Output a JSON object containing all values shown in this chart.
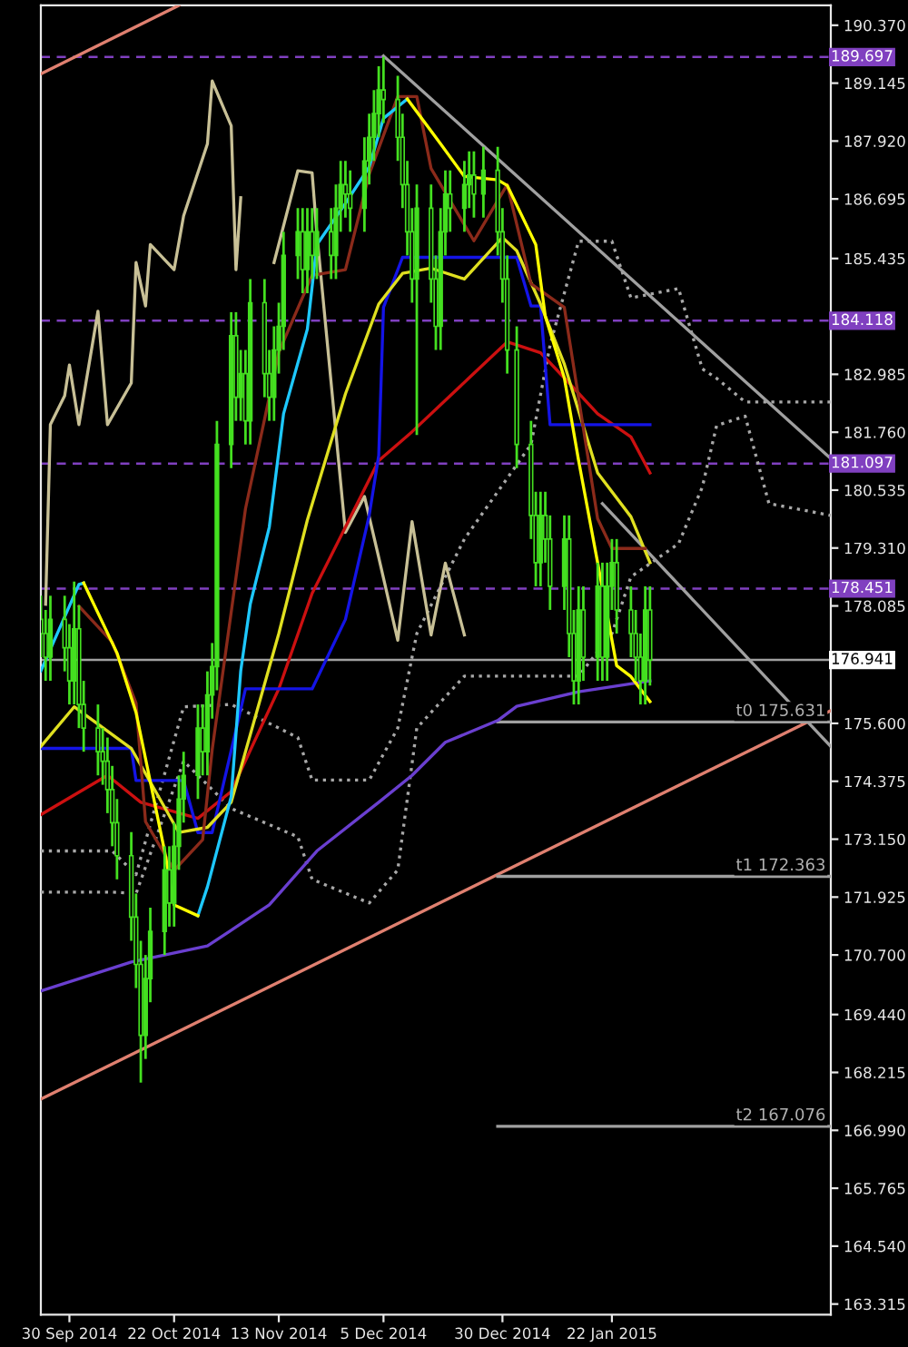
{
  "chart_data": {
    "type": "candlestick",
    "xlim": [
      "2014-09-24",
      "2015-03-09"
    ],
    "xticks": [
      {
        "value": "2014-09-30",
        "label": "30 Sep 2014"
      },
      {
        "value": "2014-10-22",
        "label": "22 Oct 2014"
      },
      {
        "value": "2014-11-13",
        "label": "13 Nov 2014"
      },
      {
        "value": "2014-12-05",
        "label": "5 Dec 2014"
      },
      {
        "value": "2014-12-30",
        "label": "30 Dec 2014"
      },
      {
        "value": "2015-01-22",
        "label": "22 Jan 2015"
      }
    ],
    "ylim": [
      163.09,
      190.79
    ],
    "yticks": [
      {
        "value": 190.37,
        "label": "190.370"
      },
      189.145,
      {
        "value": 187.92,
        "label": "187.920"
      },
      186.695,
      185.435,
      182.985,
      {
        "value": 181.76,
        "label": "181.760"
      },
      180.535,
      {
        "value": 179.31,
        "label": "179.310"
      },
      178.085,
      {
        "value": 175.6,
        "label": "175.600"
      },
      174.375,
      {
        "value": 173.15,
        "label": "173.150"
      },
      171.925,
      {
        "value": 170.7,
        "label": "170.700"
      },
      {
        "value": 169.44,
        "label": "169.440"
      },
      168.215,
      {
        "value": 166.99,
        "label": "166.990"
      },
      165.765,
      {
        "value": 164.54,
        "label": "164.540"
      },
      163.315
    ],
    "grid": false,
    "ref_lines": [
      {
        "axis": "y",
        "value": 189.697,
        "label": "189.697",
        "color": "#8040c0",
        "line_style": "dashed"
      },
      {
        "axis": "y",
        "value": 184.118,
        "label": "184.118",
        "color": "#8040c0",
        "line_style": "dashed"
      },
      {
        "axis": "y",
        "value": 181.097,
        "label": "181.097",
        "color": "#8040c0",
        "line_style": "dashed"
      },
      {
        "axis": "y",
        "value": 178.451,
        "label": "178.451",
        "color": "#8040c0",
        "line_style": "dashed"
      },
      {
        "axis": "y",
        "value": 176.941,
        "label": "176.941",
        "color": "#a0a0a0",
        "line_style": "solid"
      }
    ],
    "annotations": [
      {
        "text": "t0 175.631",
        "x": "2015-03-09",
        "y": 175.631
      },
      {
        "text": "t1 172.363",
        "x": "2015-03-09",
        "y": 172.363
      },
      {
        "text": "t2 167.076",
        "x": "2015-03-09",
        "y": 167.076
      }
    ],
    "series": [
      {
        "type": "line",
        "line_style": "dotted",
        "color": "#a8a8a8",
        "x": [
          "2014-09-24",
          "2014-10-09",
          "2014-10-14",
          "2014-10-24",
          "2014-11-03",
          "2014-11-17",
          "2014-11-20",
          "2014-12-02",
          "2014-12-08",
          "2014-12-12",
          "2014-12-22",
          "2015-01-05",
          "2015-01-09",
          "2015-01-15",
          "2015-01-22",
          "2015-01-26",
          "2015-02-05",
          "2015-02-10",
          "2015-02-13",
          "2015-02-19",
          "2015-02-24",
          "2015-03-09"
        ],
        "values": [
          172.9,
          172.9,
          172.4,
          175.95,
          176.0,
          175.3,
          174.4,
          174.4,
          175.5,
          177.5,
          179.5,
          181.5,
          183.6,
          185.8,
          185.8,
          184.6,
          184.8,
          183.1,
          182.9,
          182.4,
          182.4,
          182.4
        ]
      },
      {
        "type": "line",
        "line_style": "dotted",
        "color": "#a8a8a8",
        "x": [
          "2014-09-24",
          "2014-10-09",
          "2014-10-14",
          "2014-10-24",
          "2014-11-03",
          "2014-11-17",
          "2014-11-20",
          "2014-12-02",
          "2014-12-08",
          "2014-12-12",
          "2014-12-22",
          "2015-01-05",
          "2015-01-09",
          "2015-01-15",
          "2015-01-22",
          "2015-01-26",
          "2015-02-05",
          "2015-02-10",
          "2015-02-13",
          "2015-02-19",
          "2015-02-24",
          "2015-03-09"
        ],
        "values": [
          172.03,
          172.03,
          172.0,
          174.8,
          173.8,
          173.2,
          172.3,
          171.8,
          172.5,
          175.5,
          176.6,
          176.6,
          176.6,
          176.6,
          177.5,
          178.7,
          179.4,
          180.6,
          181.9,
          182.1,
          180.25,
          180.0
        ]
      },
      {
        "type": "line",
        "color": "#e08070",
        "x": [
          "2014-09-24",
          "2015-03-09"
        ],
        "values": [
          167.65,
          175.87
        ]
      },
      {
        "type": "line",
        "color": "#e08070",
        "x": [
          "2014-09-24",
          "2014-10-23"
        ],
        "values": [
          189.34,
          190.79
        ]
      },
      {
        "type": "line",
        "color": "#a0a0a0",
        "x": [
          "2014-12-05",
          "2015-03-09"
        ],
        "values": [
          189.72,
          181.2
        ]
      },
      {
        "type": "line",
        "color": "#a0a0a0",
        "x": [
          "2015-01-20",
          "2015-03-09"
        ],
        "values": [
          180.25,
          175.11
        ]
      },
      {
        "type": "line",
        "color": "#a0a0a0",
        "x": [
          "2014-12-29",
          "2015-03-09"
        ],
        "values": [
          175.631,
          175.631
        ]
      },
      {
        "type": "line",
        "color": "#a0a0a0",
        "x": [
          "2014-12-29",
          "2015-03-09"
        ],
        "values": [
          172.363,
          172.363
        ]
      },
      {
        "type": "line",
        "color": "#a0a0a0",
        "x": [
          "2014-12-29",
          "2015-03-09"
        ],
        "values": [
          167.076,
          167.076
        ]
      },
      {
        "type": "line",
        "color": "#c8c096",
        "x": [
          "2014-09-25",
          "2014-09-26",
          "2014-09-29",
          "2014-09-30",
          "2014-10-02",
          "2014-10-06",
          "2014-10-08",
          "2014-10-13",
          "2014-10-14",
          "2014-10-16",
          "2014-10-17",
          "2014-10-22",
          "2014-10-24",
          "2014-10-29",
          "2014-10-30",
          "2014-11-03",
          "2014-11-04",
          "2014-11-05",
          "2014-11-10",
          "2014-11-12",
          "2014-11-17",
          "2014-11-20",
          "2014-11-21",
          "2014-11-27",
          "2014-12-01",
          "2014-12-04",
          "2014-12-08",
          "2014-12-11",
          "2014-12-15",
          "2014-12-18",
          "2014-12-22"
        ],
        "values": [
          178.12,
          181.92,
          182.53,
          183.18,
          181.92,
          184.32,
          181.92,
          182.8,
          185.35,
          184.43,
          185.73,
          185.2,
          186.34,
          187.86,
          189.19,
          188.24,
          185.2,
          186.72,
          null,
          185.35,
          187.29,
          187.25,
          185.96,
          179.64,
          180.4,
          179.11,
          177.36,
          179.87,
          177.47,
          178.99,
          177.47
        ]
      },
      {
        "type": "line",
        "color": "#6a3fd0",
        "x": [
          "2014-09-24",
          "2014-10-13",
          "2014-10-29",
          "2014-11-11",
          "2014-11-21",
          "2014-12-04",
          "2014-12-11",
          "2014-12-18",
          "2014-12-29",
          "2015-01-02",
          "2015-01-15",
          "2015-01-30"
        ],
        "values": [
          169.94,
          170.55,
          170.89,
          171.76,
          172.9,
          173.93,
          174.5,
          175.2,
          175.66,
          175.96,
          176.27,
          176.5
        ]
      },
      {
        "type": "line",
        "color": "#cc1010",
        "x": [
          "2014-09-24",
          "2014-10-08",
          "2014-10-15",
          "2014-10-27",
          "2014-11-03",
          "2014-11-13",
          "2014-11-20",
          "2014-11-27",
          "2014-12-04",
          "2014-12-11",
          "2014-12-23",
          "2014-12-31",
          "2015-01-07",
          "2015-01-13",
          "2015-01-19",
          "2015-01-26",
          "2015-01-30"
        ],
        "values": [
          173.67,
          174.5,
          173.93,
          173.59,
          174.16,
          176.33,
          178.35,
          179.75,
          181.16,
          181.77,
          182.91,
          183.67,
          183.44,
          182.8,
          182.15,
          181.66,
          180.9
        ]
      },
      {
        "type": "line",
        "color": "#1414e6",
        "x": [
          "2014-09-24",
          "2014-10-13",
          "2014-10-14",
          "2014-10-24",
          "2014-10-27",
          "2014-10-30",
          "2014-11-06",
          "2014-11-20",
          "2014-11-27",
          "2014-12-02",
          "2014-12-04",
          "2014-12-05",
          "2014-12-09",
          "2015-01-02",
          "2015-01-05",
          "2015-01-07",
          "2015-01-09",
          "2015-01-30"
        ],
        "values": [
          175.07,
          175.07,
          174.39,
          174.39,
          173.29,
          173.29,
          176.33,
          176.33,
          177.8,
          180.0,
          181.27,
          184.4,
          185.46,
          185.46,
          184.43,
          184.43,
          181.92,
          181.92
        ]
      },
      {
        "type": "line",
        "color": "#e0e020",
        "x": [
          "2014-09-24",
          "2014-10-01",
          "2014-10-13",
          "2014-10-23",
          "2014-10-29",
          "2014-11-03",
          "2014-11-13",
          "2014-11-19",
          "2014-11-27",
          "2014-12-04",
          "2014-12-09",
          "2014-12-15",
          "2014-12-22",
          "2014-12-30",
          "2015-01-02",
          "2015-01-07",
          "2015-01-12",
          "2015-01-19",
          "2015-01-26",
          "2015-01-30"
        ],
        "values": [
          175.11,
          175.95,
          175.07,
          173.29,
          173.4,
          173.93,
          177.5,
          179.9,
          182.57,
          184.47,
          185.12,
          185.23,
          185.0,
          185.88,
          185.6,
          184.47,
          183.2,
          180.9,
          179.97,
          179.0
        ]
      },
      {
        "type": "line",
        "color": "#8b2a1a",
        "x": [
          "2014-10-02",
          "2014-10-09",
          "2014-10-14",
          "2014-10-16",
          "2014-10-22",
          "2014-10-28",
          "2014-10-30",
          "2014-11-06",
          "2014-11-13",
          "2014-11-20",
          "2014-11-27",
          "2014-12-02",
          "2014-12-08",
          "2014-12-12",
          "2014-12-15",
          "2014-12-24",
          "2014-12-31",
          "2015-01-05",
          "2015-01-12",
          "2015-01-19",
          "2015-01-22",
          "2015-01-29"
        ],
        "values": [
          178.08,
          177.32,
          176.03,
          173.52,
          172.49,
          173.14,
          175.04,
          180.14,
          183.45,
          185.08,
          185.2,
          187.22,
          188.86,
          188.86,
          187.34,
          185.81,
          187.0,
          184.9,
          184.4,
          179.93,
          179.3,
          179.3
        ]
      },
      {
        "type": "line",
        "color": "#1ec8ff",
        "x": [
          "2014-09-24",
          "2014-10-02",
          "2014-10-03",
          null,
          "2014-10-27",
          "2014-10-29",
          "2014-11-03",
          "2014-11-05",
          "2014-11-07",
          "2014-11-11",
          "2014-11-14",
          "2014-11-19",
          "2014-11-21",
          "2014-11-27",
          "2014-12-02",
          "2014-12-05",
          "2014-12-10"
        ],
        "values": [
          176.71,
          178.54,
          178.57,
          null,
          171.53,
          172.14,
          174.05,
          176.71,
          178.12,
          179.75,
          182.15,
          183.94,
          185.73,
          186.6,
          187.37,
          188.4,
          188.81
        ]
      },
      {
        "type": "line",
        "color": "#ffff00",
        "x": [
          "2014-10-03",
          "2014-10-10",
          "2014-10-14",
          "2014-10-20",
          "2014-10-22",
          "2014-10-27",
          null,
          "2014-12-10",
          "2014-12-17",
          "2014-12-22",
          "2014-12-29",
          "2014-12-31",
          "2015-01-06",
          "2015-01-08",
          "2015-01-12",
          "2015-01-15",
          "2015-01-19",
          "2015-01-23",
          "2015-01-26",
          "2015-01-30"
        ],
        "values": [
          178.57,
          177.09,
          175.83,
          172.9,
          171.76,
          171.53,
          null,
          188.81,
          187.86,
          187.17,
          187.1,
          186.98,
          185.73,
          184.21,
          182.91,
          181.16,
          179.0,
          176.82,
          176.59,
          176.06
        ]
      },
      {
        "color": "#44e020",
        "x": [
          "2014-09-24",
          "2014-09-25",
          "2014-09-26",
          "2014-09-29",
          "2014-09-30",
          "2014-10-01",
          "2014-10-02",
          "2014-10-03",
          "2014-10-06",
          "2014-10-07",
          "2014-10-08",
          "2014-10-09",
          "2014-10-10",
          "2014-10-13",
          "2014-10-14",
          "2014-10-15",
          "2014-10-16",
          "2014-10-17",
          "2014-10-20",
          "2014-10-21",
          "2014-10-22",
          "2014-10-23",
          "2014-10-24",
          "2014-10-27",
          "2014-10-28",
          "2014-10-29",
          "2014-10-30",
          "2014-10-31",
          "2014-11-03",
          "2014-11-04",
          "2014-11-05",
          "2014-11-06",
          "2014-11-07",
          "2014-11-10",
          "2014-11-11",
          "2014-11-12",
          "2014-11-13",
          "2014-11-14",
          "2014-11-17",
          "2014-11-18",
          "2014-11-19",
          "2014-11-20",
          "2014-11-21",
          "2014-11-24",
          "2014-11-25",
          "2014-11-26",
          "2014-11-27",
          "2014-11-28",
          "2014-12-01",
          "2014-12-02",
          "2014-12-03",
          "2014-12-04",
          "2014-12-05",
          "2014-12-08",
          "2014-12-09",
          "2014-12-10",
          "2014-12-11",
          "2014-12-12",
          "2014-12-15",
          "2014-12-16",
          "2014-12-17",
          "2014-12-18",
          "2014-12-19",
          "2014-12-22",
          "2014-12-23",
          "2014-12-24",
          "2014-12-26",
          "2014-12-29",
          "2014-12-30",
          "2014-12-31",
          "2015-01-02",
          "2015-01-05",
          "2015-01-06",
          "2015-01-07",
          "2015-01-08",
          "2015-01-09",
          "2015-01-12",
          "2015-01-13",
          "2015-01-14",
          "2015-01-15",
          "2015-01-16",
          "2015-01-19",
          "2015-01-20",
          "2015-01-21",
          "2015-01-22",
          "2015-01-23",
          "2015-01-26",
          "2015-01-27",
          "2015-01-28",
          "2015-01-29",
          "2015-01-30"
        ],
        "ohlc": [
          [
            177.8,
            178.3,
            177.0,
            177.5
          ],
          [
            177.5,
            178.0,
            176.5,
            177.0
          ],
          [
            177.0,
            178.3,
            176.5,
            177.8
          ],
          [
            177.8,
            178.3,
            176.7,
            177.2
          ],
          [
            177.2,
            177.7,
            176.0,
            176.5
          ],
          [
            176.5,
            178.6,
            176.0,
            177.6
          ],
          [
            177.6,
            178.1,
            175.5,
            176.0
          ],
          [
            176.0,
            176.5,
            175.0,
            175.5
          ],
          [
            175.5,
            176.0,
            174.5,
            175.0
          ],
          [
            175.0,
            175.5,
            174.3,
            174.8
          ],
          [
            174.8,
            175.3,
            173.7,
            174.2
          ],
          [
            174.2,
            174.7,
            173.0,
            173.5
          ],
          [
            173.5,
            174.0,
            172.3,
            172.8
          ],
          [
            172.8,
            173.3,
            171.0,
            171.5
          ],
          [
            171.5,
            172.0,
            170.0,
            170.5
          ],
          [
            170.5,
            171.0,
            168.0,
            169.0
          ],
          [
            169.0,
            170.7,
            168.5,
            170.2
          ],
          [
            170.2,
            171.7,
            169.7,
            171.2
          ],
          [
            171.2,
            173.0,
            170.7,
            172.5
          ],
          [
            172.5,
            173.0,
            171.3,
            171.8
          ],
          [
            171.8,
            173.5,
            171.3,
            173.0
          ],
          [
            173.0,
            174.5,
            172.5,
            174.0
          ],
          [
            174.0,
            175.0,
            173.5,
            174.5
          ],
          [
            174.5,
            176.0,
            174.0,
            175.5
          ],
          [
            175.5,
            176.0,
            174.5,
            175.0
          ],
          [
            175.0,
            176.7,
            174.5,
            176.2
          ],
          [
            176.2,
            177.3,
            175.7,
            176.8
          ],
          [
            176.8,
            182.0,
            176.3,
            181.5
          ],
          [
            181.5,
            184.3,
            181.0,
            183.8
          ],
          [
            183.8,
            184.3,
            182.0,
            182.5
          ],
          [
            182.5,
            183.5,
            182.0,
            183.0
          ],
          [
            183.0,
            183.5,
            181.5,
            182.0
          ],
          [
            182.0,
            185.0,
            181.5,
            184.5
          ],
          [
            184.5,
            185.0,
            182.5,
            183.0
          ],
          [
            183.0,
            183.5,
            182.0,
            182.5
          ],
          [
            182.5,
            184.0,
            182.0,
            183.5
          ],
          [
            183.5,
            184.5,
            183.0,
            184.0
          ],
          [
            184.0,
            186.0,
            183.5,
            185.5
          ],
          [
            185.5,
            186.5,
            185.0,
            186.0
          ],
          [
            186.0,
            186.5,
            184.7,
            185.2
          ],
          [
            185.2,
            186.5,
            184.7,
            186.0
          ],
          [
            186.0,
            186.5,
            185.0,
            185.5
          ],
          [
            185.5,
            186.5,
            185.0,
            186.0
          ],
          [
            186.0,
            186.5,
            185.0,
            185.5
          ],
          [
            185.5,
            187.0,
            185.0,
            186.5
          ],
          [
            186.5,
            187.5,
            186.0,
            187.0
          ],
          [
            187.0,
            187.5,
            186.3,
            186.8
          ],
          [
            186.8,
            187.3,
            186.0,
            186.5
          ],
          [
            186.5,
            188.0,
            186.0,
            187.5
          ],
          [
            187.5,
            188.5,
            187.0,
            188.0
          ],
          [
            188.0,
            189.0,
            187.5,
            188.5
          ],
          [
            188.5,
            189.5,
            188.0,
            189.0
          ],
          [
            189.0,
            189.7,
            188.3,
            188.8
          ],
          [
            188.8,
            189.3,
            187.5,
            188.0
          ],
          [
            188.0,
            188.5,
            186.5,
            187.0
          ],
          [
            187.0,
            187.5,
            185.5,
            186.0
          ],
          [
            186.0,
            186.5,
            184.5,
            185.0
          ],
          [
            185.0,
            187.0,
            181.7,
            186.5
          ],
          [
            186.5,
            187.0,
            184.5,
            185.0
          ],
          [
            185.0,
            185.5,
            183.5,
            184.0
          ],
          [
            184.0,
            186.5,
            183.5,
            186.0
          ],
          [
            186.0,
            187.3,
            185.5,
            186.8
          ],
          [
            186.8,
            187.3,
            186.0,
            186.5
          ],
          [
            186.5,
            187.5,
            186.0,
            187.0
          ],
          [
            187.0,
            187.7,
            186.5,
            187.2
          ],
          [
            187.2,
            187.7,
            186.3,
            186.8
          ],
          [
            186.8,
            187.8,
            186.3,
            187.3
          ],
          [
            187.3,
            187.8,
            185.5,
            186.0
          ],
          [
            186.0,
            186.5,
            184.5,
            185.0
          ],
          [
            185.0,
            185.5,
            183.0,
            183.5
          ],
          [
            183.5,
            184.0,
            181.0,
            181.5
          ],
          [
            181.5,
            182.0,
            179.5,
            180.0
          ],
          [
            180.0,
            180.5,
            178.5,
            179.0
          ],
          [
            179.0,
            180.5,
            178.5,
            180.0
          ],
          [
            180.0,
            180.5,
            179.0,
            179.5
          ],
          [
            179.5,
            180.0,
            178.0,
            178.5
          ],
          [
            178.5,
            180.0,
            178.0,
            179.5
          ],
          [
            179.5,
            180.0,
            177.0,
            177.5
          ],
          [
            177.5,
            178.0,
            176.0,
            176.5
          ],
          [
            176.5,
            178.5,
            176.0,
            178.0
          ],
          [
            178.0,
            178.5,
            176.5,
            177.0
          ],
          [
            177.0,
            179.0,
            176.5,
            178.5
          ],
          [
            178.5,
            179.0,
            176.5,
            177.0
          ],
          [
            177.0,
            179.0,
            176.5,
            178.5
          ],
          [
            178.5,
            179.5,
            178.0,
            179.0
          ],
          [
            179.0,
            179.5,
            177.5,
            178.0
          ],
          [
            178.0,
            178.5,
            177.0,
            177.5
          ],
          [
            177.5,
            178.0,
            176.5,
            177.0
          ],
          [
            177.0,
            177.5,
            176.0,
            176.5
          ],
          [
            176.5,
            178.5,
            176.0,
            178.0
          ],
          [
            178.0,
            178.5,
            176.4,
            176.941
          ]
        ]
      }
    ]
  }
}
